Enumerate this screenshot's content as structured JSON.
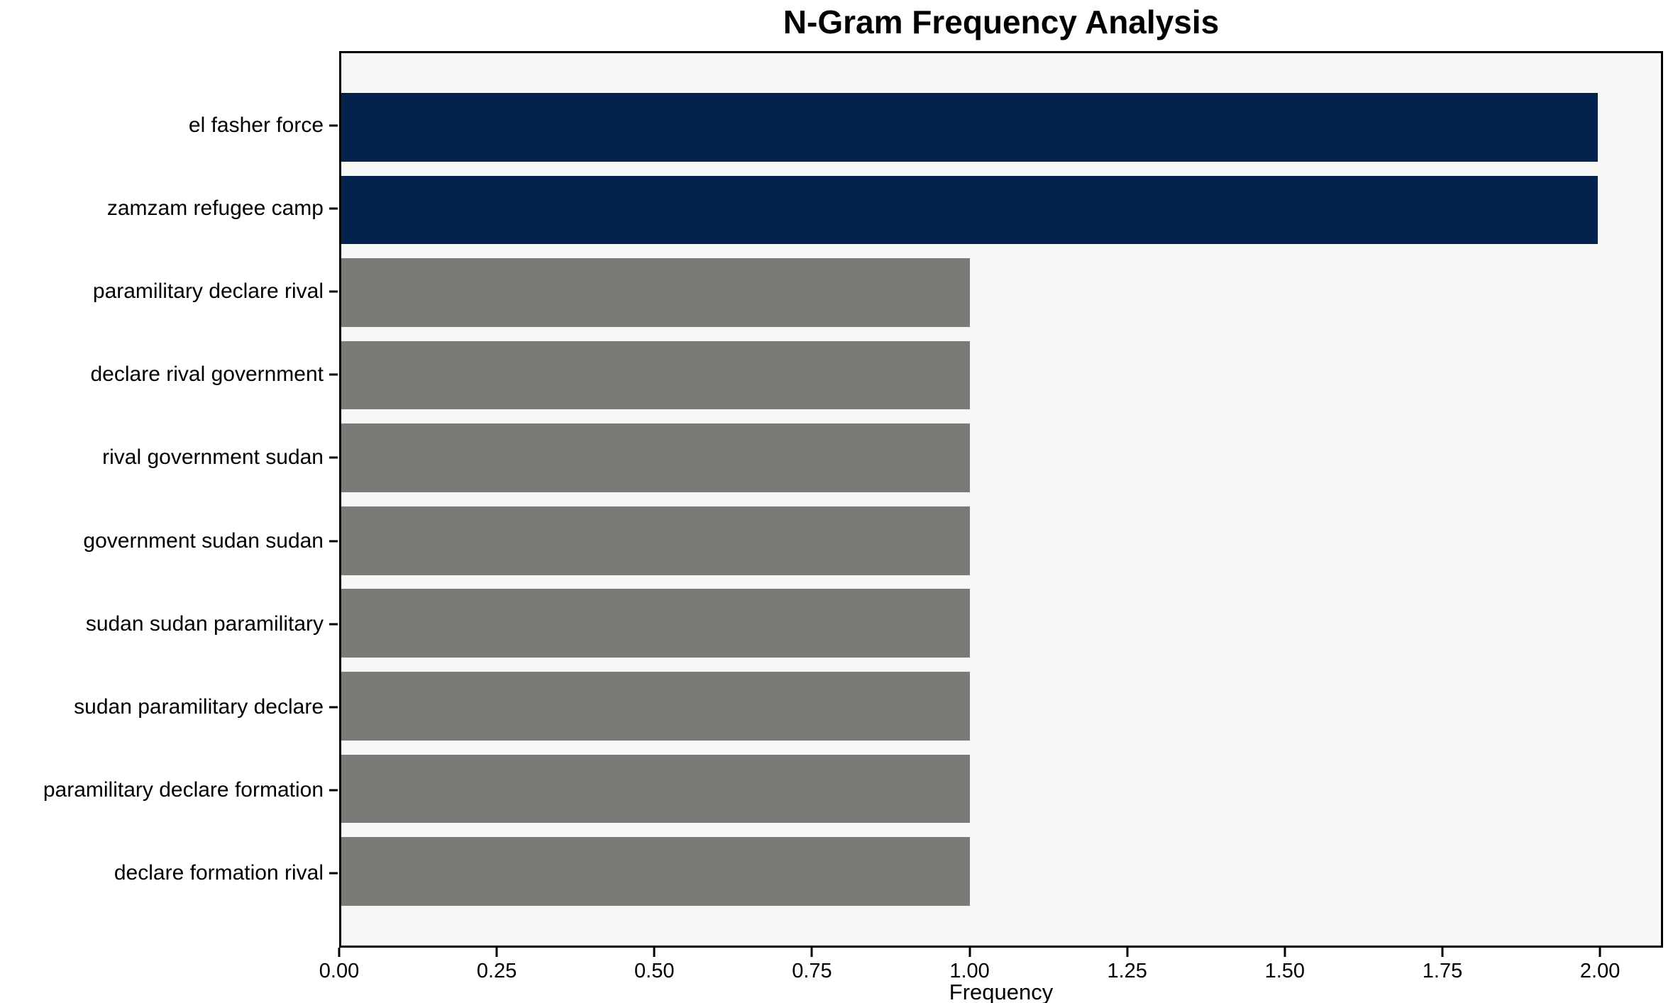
{
  "colors": {
    "highlight_bar": "#03234e",
    "default_bar": "#7b7a77",
    "plot_background": "#f7f7f7",
    "figure_background": "#ffffff",
    "spine": "#000000",
    "text": "#000000"
  },
  "chart_data": {
    "type": "bar",
    "orientation": "horizontal",
    "title": "N-Gram Frequency Analysis",
    "xlabel": "Frequency",
    "ylabel": "",
    "categories": [
      "el fasher force",
      "zamzam refugee camp",
      "paramilitary declare rival",
      "declare rival government",
      "rival government sudan",
      "government sudan sudan",
      "sudan sudan paramilitary",
      "sudan paramilitary declare",
      "paramilitary declare formation",
      "declare formation rival"
    ],
    "values": [
      2,
      2,
      1,
      1,
      1,
      1,
      1,
      1,
      1,
      1
    ],
    "bar_colors": [
      "#03234e",
      "#03234e",
      "#7b7a77",
      "#7b7a77",
      "#7b7a77",
      "#7b7a77",
      "#7b7a77",
      "#7b7a77",
      "#7b7a77",
      "#7b7a77"
    ],
    "xlim": [
      0,
      2.1
    ],
    "xticks": [
      0.0,
      0.25,
      0.5,
      0.75,
      1.0,
      1.25,
      1.5,
      1.75,
      2.0
    ],
    "xtick_labels": [
      "0.00",
      "0.25",
      "0.50",
      "0.75",
      "1.00",
      "1.25",
      "1.50",
      "1.75",
      "2.00"
    ],
    "grid": false,
    "legend": null
  }
}
